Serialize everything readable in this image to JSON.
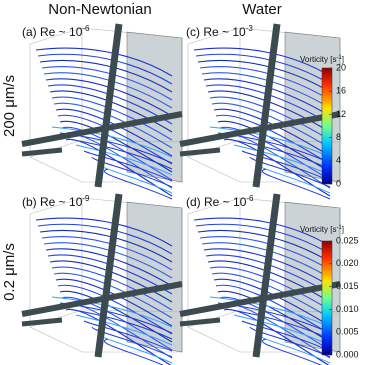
{
  "columns": [
    "Non-Newtonian",
    "Water"
  ],
  "rows": [
    "200 μm/s",
    "0.2 μm/s"
  ],
  "panels": [
    {
      "label": "(a) Re ~ 10",
      "exponent": "-6"
    },
    {
      "label": "(c) Re ~ 10",
      "exponent": "-3"
    },
    {
      "label": "(b) Re ~ 10",
      "exponent": "-9"
    },
    {
      "label": "(d) Re ~ 10",
      "exponent": "-6"
    }
  ],
  "colorbars": [
    {
      "title": "Vorticity [s",
      "title_exponent": "-1",
      "title_end": "]",
      "lim": [
        0,
        20
      ],
      "ticks": [
        0,
        4,
        8,
        12,
        16,
        20
      ]
    },
    {
      "title": "Vorticity [s",
      "title_exponent": "-1",
      "title_end": "]",
      "lim": [
        0,
        0.025
      ],
      "ticks": [
        {
          "value": 0,
          "label": "0.000"
        },
        {
          "value": 0.005,
          "label": "0.005"
        },
        {
          "value": 0.01,
          "label": "0.010"
        },
        {
          "value": 0.015,
          "label": "0.015"
        },
        {
          "value": 0.02,
          "label": "0.020"
        },
        {
          "value": 0.025,
          "label": "0.025"
        }
      ]
    }
  ]
}
